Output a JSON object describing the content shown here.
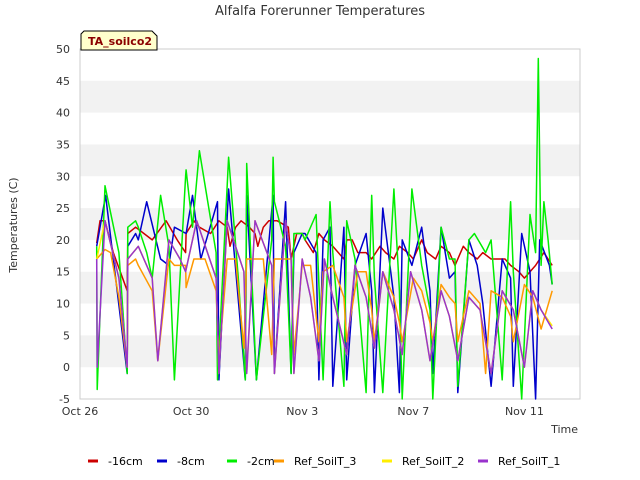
{
  "chart_data": {
    "type": "line",
    "title": "Alfalfa Forerunner Temperatures",
    "xlabel": "Time",
    "ylabel": "Temperatures (C)",
    "ylim": [
      -5,
      50
    ],
    "yticks": [
      -5,
      0,
      5,
      10,
      15,
      20,
      25,
      30,
      35,
      40,
      45,
      50
    ],
    "xlim": [
      "Oct 26",
      "Nov 13"
    ],
    "xticks": [
      {
        "label": "Oct 26",
        "day": 0
      },
      {
        "label": "Oct 30",
        "day": 4
      },
      {
        "label": "Nov 3",
        "day": 8
      },
      {
        "label": "Nov 7",
        "day": 12
      },
      {
        "label": "Nov 11",
        "day": 16
      }
    ],
    "grid": "horizontal bands",
    "legend_position": "bottom",
    "badge": "TA_soilco2",
    "colors": {
      "band": "#f2f2f2",
      "plot_border": "#cccccc",
      "badge_fill": "#ffffcc",
      "badge_border": "#000000"
    },
    "series": [
      {
        "name": "-16cm",
        "color": "#cc0000",
        "x": [
          0.6,
          0.72,
          0.9,
          1.2,
          1.7,
          1.72,
          2.0,
          2.3,
          2.6,
          3.1,
          3.5,
          3.8,
          3.82,
          4.1,
          4.3,
          4.7,
          5.0,
          5.3,
          5.4,
          5.6,
          5.8,
          6.1,
          6.3,
          6.4,
          6.6,
          6.8,
          7.1,
          7.5,
          7.6,
          7.8,
          8.0,
          8.1,
          8.4,
          8.6,
          8.8,
          9.1,
          9.5,
          9.6,
          9.8,
          10.0,
          10.3,
          10.5,
          10.8,
          11.0,
          11.3,
          11.5,
          11.8,
          12.0,
          12.3,
          12.5,
          12.8,
          13.0,
          13.3,
          13.5,
          13.8,
          14.0,
          14.3,
          14.5,
          14.8,
          15.0,
          15.3,
          15.5,
          15.8,
          16.0,
          16.4,
          16.7,
          17.0
        ],
        "y": [
          19.5,
          23,
          23,
          18,
          12,
          21,
          22,
          21,
          20,
          23,
          20,
          18,
          21,
          23,
          22,
          21,
          23,
          22,
          19,
          22,
          23,
          22,
          21,
          19,
          22,
          23,
          23,
          22,
          17,
          21,
          21,
          20,
          18,
          21,
          20,
          19,
          17,
          20,
          20,
          18,
          18,
          17,
          19,
          18,
          17,
          19,
          18,
          17,
          20,
          18,
          17,
          19,
          18,
          16,
          19,
          18,
          17,
          18,
          17,
          17,
          17,
          16,
          15,
          14,
          16,
          18,
          16
        ]
      },
      {
        "name": "-8cm",
        "color": "#0000cc",
        "x": [
          0.6,
          0.92,
          1.7,
          1.72,
          2.0,
          2.1,
          2.4,
          2.9,
          3.2,
          3.4,
          3.82,
          4.05,
          4.35,
          4.95,
          5.0,
          5.35,
          5.95,
          6.0,
          6.35,
          6.95,
          7.0,
          7.4,
          7.6,
          7.7,
          8.0,
          8.1,
          8.5,
          8.6,
          8.75,
          9.0,
          9.1,
          9.5,
          9.6,
          9.9,
          10.3,
          10.5,
          10.6,
          10.9,
          11.3,
          11.5,
          11.6,
          11.95,
          12.3,
          12.6,
          12.7,
          13.0,
          13.3,
          13.5,
          13.6,
          14.0,
          14.3,
          14.5,
          14.8,
          15.2,
          15.5,
          15.6,
          15.9,
          16.2,
          16.4,
          16.55,
          16.9,
          17.0
        ],
        "y": [
          19,
          27,
          -1,
          19,
          21,
          20,
          26,
          17,
          16,
          22,
          21,
          27,
          17,
          26,
          -2,
          28,
          -2,
          27,
          -2,
          27,
          -1,
          26,
          -1,
          18,
          21,
          21,
          18,
          -2,
          20,
          22,
          -3,
          22,
          -2,
          16,
          21,
          12,
          -4,
          25,
          11,
          -4,
          20,
          16,
          22,
          12,
          -1,
          22,
          14,
          15,
          -4,
          20,
          16,
          10,
          -3,
          17,
          14,
          -3,
          21,
          15,
          -5,
          20,
          16,
          13
        ]
      },
      {
        "name": "-2cm",
        "color": "#00ee00",
        "x": [
          0.6,
          0.62,
          0.9,
          1.4,
          1.7,
          1.72,
          2.0,
          2.1,
          2.4,
          2.6,
          2.9,
          3.2,
          3.4,
          3.8,
          3.82,
          4.05,
          4.3,
          4.9,
          4.95,
          5.35,
          5.7,
          5.95,
          6.0,
          6.35,
          6.9,
          6.95,
          7.0,
          7.4,
          7.6,
          7.7,
          8.0,
          8.1,
          8.5,
          8.6,
          8.75,
          9.0,
          9.1,
          9.5,
          9.6,
          9.9,
          10.3,
          10.5,
          10.6,
          10.9,
          11.3,
          11.5,
          11.6,
          11.95,
          12.3,
          12.6,
          12.7,
          13.0,
          13.3,
          13.5,
          13.6,
          14.0,
          14.2,
          14.6,
          14.8,
          15.2,
          15.5,
          15.6,
          15.9,
          16.2,
          16.4,
          16.5,
          16.6,
          16.7,
          16.85,
          17.0
        ],
        "y": [
          19,
          -3.5,
          28.5,
          18,
          -1,
          22,
          23,
          22,
          18,
          14,
          27,
          19,
          -2,
          30,
          31,
          22,
          34,
          18,
          -2,
          33,
          14,
          -2,
          32,
          -2,
          20,
          33,
          26,
          19,
          -1,
          21,
          21,
          20,
          24,
          13,
          -2,
          26,
          18,
          -3,
          23,
          17,
          -4,
          27,
          14,
          -4,
          28,
          12,
          -5,
          28,
          16,
          9,
          -5,
          22,
          17,
          17,
          -3,
          20,
          21,
          18,
          20,
          -2,
          26,
          15,
          -5,
          24,
          18,
          48.5,
          16,
          26,
          20,
          13
        ]
      },
      {
        "name": "Ref_SoilT_3",
        "color": "#ff9900",
        "x": [
          0.6,
          0.9,
          1.1,
          1.4,
          1.7,
          1.72,
          2.0,
          2.1,
          2.6,
          2.8,
          3.2,
          3.4,
          3.8,
          3.82,
          4.1,
          4.5,
          4.9,
          5.0,
          5.3,
          5.6,
          5.9,
          6.0,
          6.3,
          6.6,
          6.9,
          7.0,
          7.3,
          7.6,
          7.7,
          8.0,
          8.3,
          8.6,
          8.75,
          9.1,
          9.5,
          9.6,
          10.0,
          10.3,
          10.5,
          10.6,
          10.9,
          11.3,
          11.5,
          11.6,
          12.0,
          12.3,
          12.6,
          12.7,
          13.0,
          13.3,
          13.5,
          13.6,
          14.0,
          14.4,
          14.6,
          14.8,
          15.2,
          15.5,
          15.6,
          16.0,
          16.3,
          16.6,
          17.0
        ],
        "y": [
          17,
          18.5,
          18,
          11,
          0,
          16,
          17,
          16,
          12,
          1,
          17,
          16,
          16,
          12.5,
          17,
          17,
          12,
          1,
          17,
          17,
          3,
          17,
          17,
          17,
          2,
          17,
          17,
          17,
          2,
          16,
          16,
          4,
          15,
          16,
          11,
          4,
          15,
          15,
          9,
          4,
          15,
          11,
          7,
          4,
          14,
          12,
          7,
          4,
          13,
          11,
          10,
          4,
          12,
          10,
          -1,
          12,
          11,
          8,
          4,
          13,
          11,
          6,
          12
        ]
      },
      {
        "name": "Ref_SoilT_2",
        "color": "#ffee00",
        "x": [
          0.6,
          0.9,
          1.4,
          1.7,
          1.72,
          2.1,
          2.6,
          2.8,
          3.2,
          3.6,
          3.8,
          4.2,
          4.9,
          5.0,
          5.3,
          5.9,
          6.0,
          6.3,
          6.9,
          7.0,
          7.4,
          7.6,
          7.7,
          8.0,
          8.3,
          8.6,
          8.8,
          9.1,
          9.6,
          9.9,
          10.3,
          10.6,
          10.9,
          11.3,
          11.6,
          11.9,
          12.3,
          12.6,
          13.0,
          13.3,
          13.6,
          14.0,
          14.4,
          14.8,
          15.2,
          15.6,
          16.0,
          16.3,
          16.6,
          17.0
        ],
        "y": [
          17,
          23,
          14,
          0,
          17,
          19,
          14,
          1,
          20,
          17,
          15,
          23,
          14,
          -1,
          23,
          15,
          -1,
          23,
          16,
          -1,
          23,
          17,
          -1,
          17,
          11,
          1,
          17,
          11,
          2,
          16,
          11,
          3,
          15,
          9,
          2,
          15,
          9,
          1,
          12,
          8,
          1,
          11,
          9,
          -1,
          12,
          9,
          0,
          12,
          9,
          6.5
        ]
      },
      {
        "name": "Ref_SoilT_1",
        "color": "#9933cc",
        "x": [
          0.6,
          0.62,
          0.9,
          1.4,
          1.7,
          1.72,
          2.1,
          2.6,
          2.8,
          3.2,
          3.6,
          3.8,
          4.2,
          4.9,
          5.0,
          5.3,
          5.9,
          6.0,
          6.3,
          6.9,
          7.0,
          7.4,
          7.6,
          7.7,
          8.0,
          8.3,
          8.6,
          8.8,
          9.1,
          9.6,
          9.9,
          10.3,
          10.6,
          10.9,
          11.3,
          11.6,
          11.9,
          12.3,
          12.6,
          13.0,
          13.3,
          13.6,
          14.0,
          14.4,
          14.8,
          15.2,
          15.6,
          16.0,
          16.3,
          16.6,
          17.0
        ],
        "y": [
          17,
          0,
          23,
          14,
          0,
          17,
          19,
          14,
          1,
          20,
          17,
          15,
          23,
          14,
          -1,
          23,
          15,
          -1,
          23,
          16,
          -1,
          23,
          17,
          -1,
          17,
          11,
          1,
          17,
          11,
          2,
          16,
          11,
          3,
          15,
          9,
          2,
          15,
          9,
          1,
          12,
          8,
          1,
          11,
          9,
          -1,
          12,
          9,
          0,
          12,
          9,
          6
        ]
      }
    ]
  }
}
